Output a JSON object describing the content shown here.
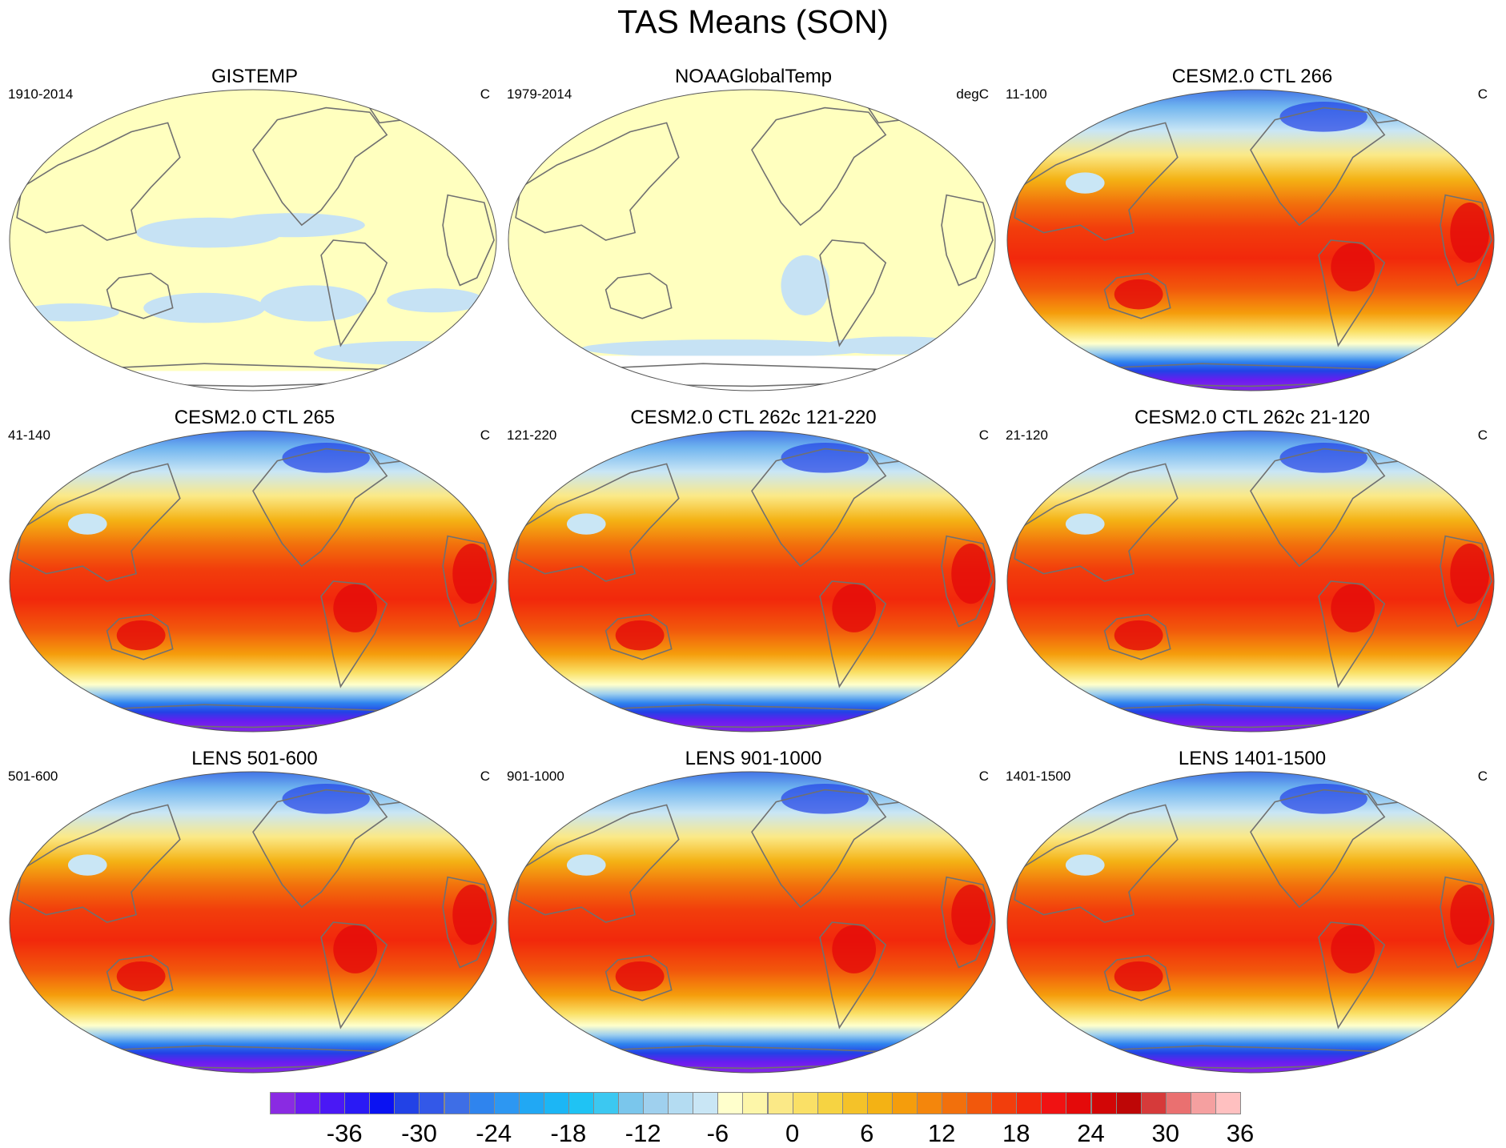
{
  "title": "TAS Means (SON)",
  "panels": [
    {
      "title": "GISTEMP",
      "period": "1910-2014",
      "units": "C",
      "kind": "obs_gis"
    },
    {
      "title": "NOAAGlobalTemp",
      "period": "1979-2014",
      "units": "degC",
      "kind": "obs_noaa"
    },
    {
      "title": "CESM2.0 CTL 266",
      "period": "11-100",
      "units": "C",
      "kind": "model"
    },
    {
      "title": "CESM2.0 CTL 265",
      "period": "41-140",
      "units": "C",
      "kind": "model"
    },
    {
      "title": "CESM2.0 CTL 262c 121-220",
      "period": "121-220",
      "units": "C",
      "kind": "model"
    },
    {
      "title": "CESM2.0 CTL 262c 21-120",
      "period": "21-120",
      "units": "C",
      "kind": "model"
    },
    {
      "title": "LENS 501-600",
      "period": "501-600",
      "units": "C",
      "kind": "model"
    },
    {
      "title": "LENS 901-1000",
      "period": "901-1000",
      "units": "C",
      "kind": "model"
    },
    {
      "title": "LENS 1401-1500",
      "period": "1401-1500",
      "units": "C",
      "kind": "model"
    }
  ],
  "colorbar": {
    "ticks": [
      "-36",
      "-30",
      "-24",
      "-18",
      "-12",
      "-6",
      "0",
      "6",
      "12",
      "18",
      "24",
      "30",
      "36"
    ],
    "colors": [
      "#8a2be2",
      "#6a1cf0",
      "#4a18f5",
      "#2a1af5",
      "#0a12f2",
      "#2242e6",
      "#3358e8",
      "#3e6ee6",
      "#2f84ee",
      "#2d97f2",
      "#21a8f4",
      "#1cb6f5",
      "#1fc3f4",
      "#3cc8f1",
      "#7ac6ec",
      "#9fd0ee",
      "#b4dcf2",
      "#c9e6f5",
      "#ffffcc",
      "#fdf6a9",
      "#fbe987",
      "#fae066",
      "#f6d342",
      "#f4c229",
      "#f4b214",
      "#f59d0c",
      "#f4860c",
      "#f2700c",
      "#f2580c",
      "#f23e0c",
      "#f2280c",
      "#f01212",
      "#e40a0a",
      "#d20606",
      "#be0606",
      "#d63a3a",
      "#ea7070",
      "#f5a0a0",
      "#ffc0c0"
    ]
  }
}
